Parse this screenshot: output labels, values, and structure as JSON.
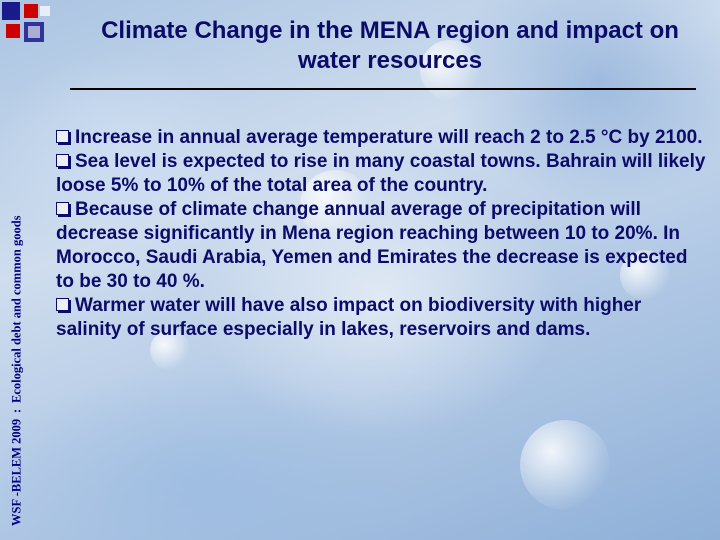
{
  "sidebar": {
    "label_left": "WSF -BELEM 2009",
    "separator": ":",
    "label_right": "Ecological debt and common goods"
  },
  "slide": {
    "title": "Climate Change in the MENA region and impact on water resources",
    "bullets": [
      "Increase in annual average temperature will reach 2 to 2.5 °C by 2100.",
      "Sea level is expected to rise in many coastal towns. Bahrain will likely loose 5% to 10% of the total area of the country.",
      "Because of climate change annual average of precipitation will decrease significantly in Mena region reaching between 10 to 20%. In Morocco, Saudi Arabia, Yemen and Emirates the decrease is expected to be 30 to 40 %.",
      "Warmer water will have also impact on biodiversity with higher salinity of surface especially in lakes, reservoirs and dams."
    ]
  },
  "colors": {
    "text": "#0b0b6a",
    "sidebar_text": "#000080",
    "logo_red": "#cc0000",
    "logo_blue": "#1a1a8c"
  },
  "icons": {
    "logo": "squares-logo-icon",
    "bullet": "checkbox-bullet-icon"
  }
}
